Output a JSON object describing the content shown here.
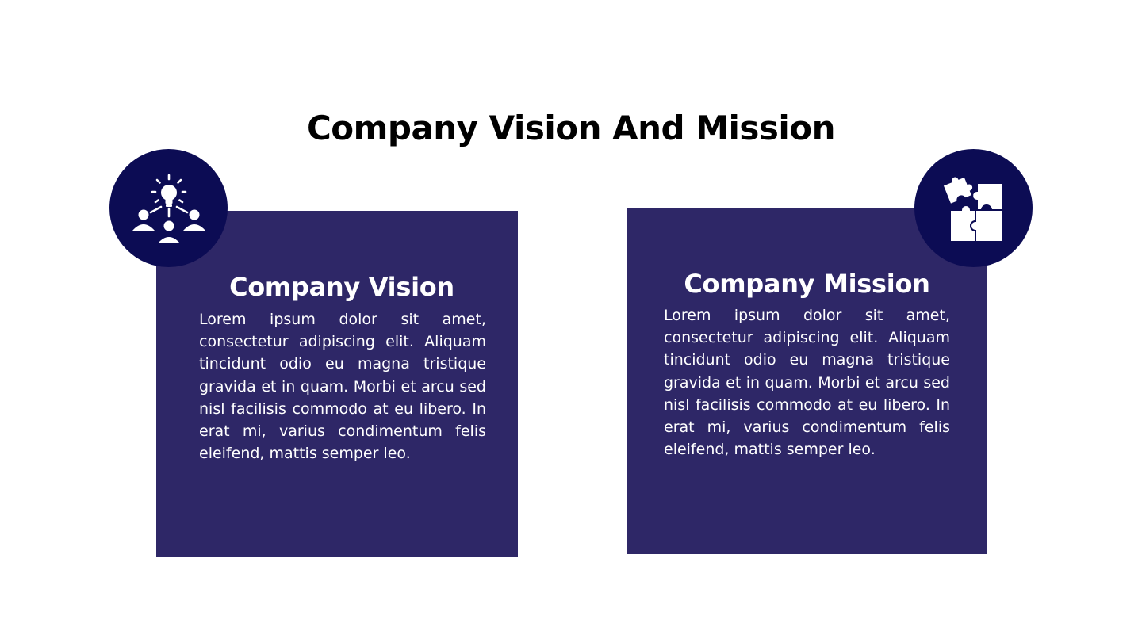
{
  "slide": {
    "title": "Company Vision And Mission"
  },
  "vision": {
    "heading": "Company Vision",
    "body": "Lorem ipsum dolor sit amet, consectetur adipiscing elit. Aliquam tincidunt odio eu magna tristique gravida et in quam. Morbi et arcu sed nisl facilisis commodo at eu libero. In erat mi, varius condimentum felis eleifend, mattis semper leo.",
    "icon": "idea-team-icon"
  },
  "mission": {
    "heading": "Company Mission",
    "body": "Lorem ipsum dolor sit amet, consectetur adipiscing elit. Aliquam tincidunt odio eu magna tristique gravida et in quam. Morbi et arcu sed nisl facilisis commodo at eu libero. In erat mi, varius condimentum felis eleifend, mattis semper leo.",
    "icon": "puzzle-icon"
  },
  "colors": {
    "card": "#2e2767",
    "badge": "#0c0c54",
    "title_text": "#000000",
    "card_text": "#ffffff"
  }
}
